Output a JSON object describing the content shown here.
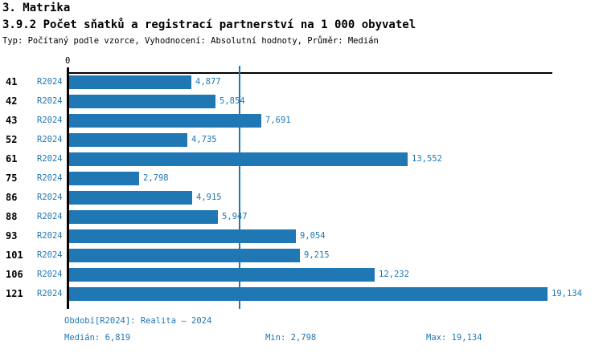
{
  "header": {
    "section_title": "3. Matrika",
    "chart_title": "3.9.2 Počet sňatků a registrací partnerství na 1 000 obyvatel",
    "subtitle": "Typ: Počítaný podle vzorce, Vyhodnocení: Absolutní hodnoty, Průměr: Medián"
  },
  "chart_data": {
    "type": "bar",
    "orientation": "horizontal",
    "title": "3.9.2 Počet sňatků a registrací partnerství na 1 000 obyvatel",
    "categories": [
      "41",
      "42",
      "43",
      "52",
      "61",
      "75",
      "86",
      "88",
      "93",
      "101",
      "106",
      "121"
    ],
    "series": [
      {
        "name": "R2024",
        "values": [
          4877,
          5854,
          7691,
          4735,
          13552,
          2798,
          4915,
          5947,
          9054,
          9215,
          12232,
          19134
        ],
        "value_labels": [
          "4,877",
          "5,854",
          "7,691",
          "4,735",
          "13,552",
          "2,798",
          "4,915",
          "5,947",
          "9,054",
          "9,215",
          "12,232",
          "19,134"
        ]
      }
    ],
    "x_axis": {
      "ticks": [
        "0"
      ],
      "xlim": [
        0,
        19360
      ]
    },
    "median": {
      "value": 6819,
      "label": "6,819"
    },
    "min": 2798,
    "max": 19134,
    "bar_color": "#1f77b4",
    "median_line_color": "#1f77b4",
    "label_color": "#1f77b4",
    "grid": false,
    "legend": "none"
  },
  "footer": {
    "period_label": "Období[R2024]: Realita – 2024",
    "median_label": "Medián: 6,819",
    "min_label": "Min: 2,798",
    "max_label": "Max: 19,134"
  }
}
